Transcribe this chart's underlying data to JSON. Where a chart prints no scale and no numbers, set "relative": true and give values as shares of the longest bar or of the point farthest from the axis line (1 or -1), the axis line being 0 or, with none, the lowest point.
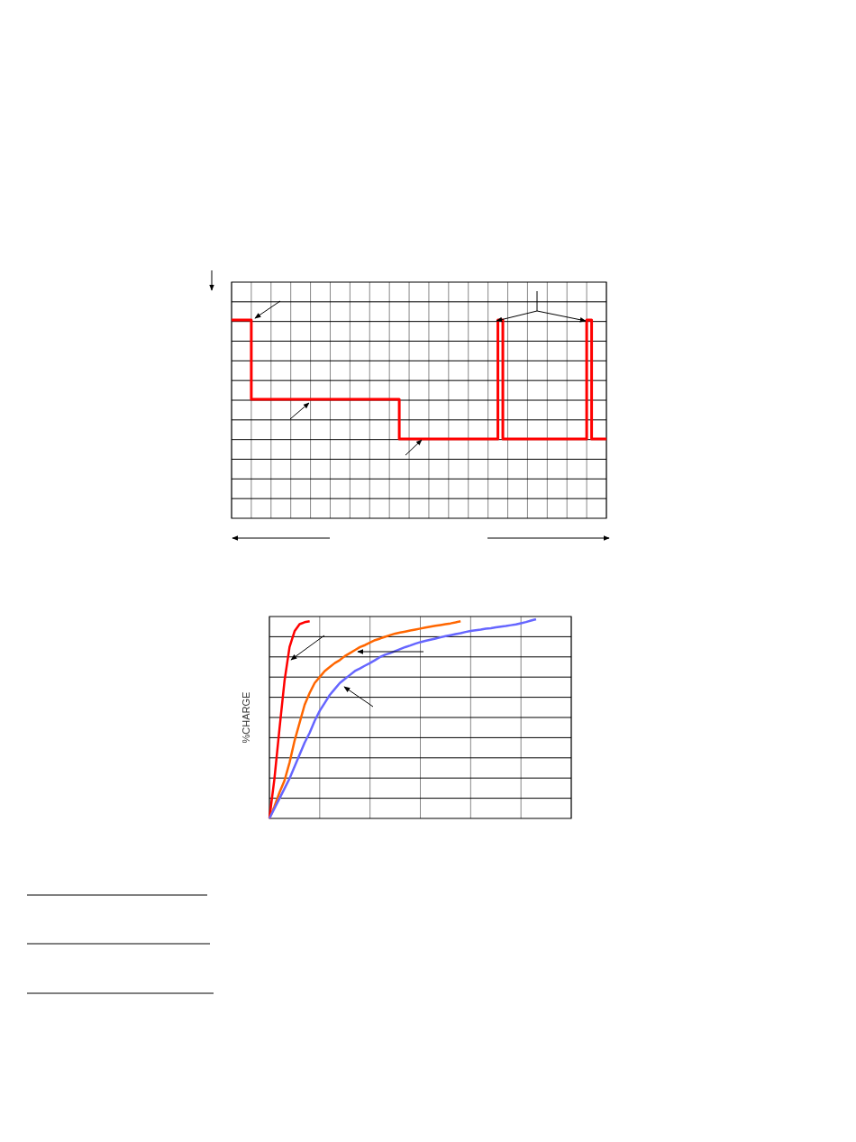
{
  "chart_data": [
    {
      "type": "step",
      "relative": true,
      "categories": [
        null,
        null,
        null,
        null,
        null,
        null,
        null,
        null,
        null,
        null,
        null,
        null,
        null,
        null,
        null,
        null,
        null,
        null,
        null,
        null,
        null,
        null,
        null,
        null,
        null,
        null,
        null,
        null,
        null,
        null,
        null,
        null,
        null,
        null,
        null,
        null,
        null,
        null,
        null,
        null,
        null,
        null,
        null,
        null,
        null,
        null,
        null,
        null,
        null,
        null,
        null,
        null,
        null,
        null,
        null,
        null,
        null,
        null,
        null,
        null,
        null,
        null,
        null,
        null,
        null,
        null,
        null,
        null,
        null,
        null,
        null,
        null,
        null,
        null,
        null,
        null,
        null
      ],
      "grid": true,
      "series": [
        {
          "color": "#ff0000",
          "values": [
            1,
            1,
            1,
            1,
            0.6,
            0.6,
            0.6,
            0.6,
            0.6,
            0.6,
            0.6,
            0.6,
            0.6,
            0.6,
            0.6,
            0.6,
            0.6,
            0.6,
            0.6,
            0.6,
            0.6,
            0.6,
            0.6,
            0.6,
            0.6,
            0.6,
            0.6,
            0.6,
            0.6,
            0.6,
            0.6,
            0.6,
            0.6,
            0.6,
            0.4,
            0.4,
            0.4,
            0.4,
            0.4,
            0.4,
            0.4,
            0.4,
            0.4,
            0.4,
            0.4,
            0.4,
            0.4,
            0.4,
            0.4,
            0.4,
            0.4,
            0.4,
            0.4,
            0.4,
            1,
            0.4,
            0.4,
            0.4,
            0.4,
            0.4,
            0.4,
            0.4,
            0.4,
            0.4,
            0.4,
            0.4,
            0.4,
            0.4,
            0.4,
            0.4,
            0.4,
            0.4,
            1,
            0.4,
            0.4,
            0.4,
            0.4
          ]
        }
      ]
    },
    {
      "type": "line",
      "relative": true,
      "ylabel": "%CHARGE",
      "categories": [
        null,
        null,
        null,
        null,
        null,
        null,
        null,
        null,
        null,
        null,
        null,
        null,
        null,
        null,
        null,
        null,
        null,
        null,
        null,
        null,
        null,
        null,
        null,
        null,
        null,
        null,
        null,
        null,
        null,
        null,
        null,
        null,
        null,
        null,
        null,
        null,
        null,
        null,
        null,
        null,
        null,
        null,
        null,
        null,
        null,
        null,
        null,
        null,
        null,
        null,
        null,
        null,
        null,
        null,
        null,
        null,
        null,
        null,
        null,
        null,
        null
      ],
      "grid": true,
      "series": [
        {
          "color": "#ff0000",
          "values": [
            0,
            0.2,
            0.45,
            0.69,
            0.86,
            0.94,
            0.975,
            0.985,
            0.99,
            null,
            null,
            null,
            null,
            null,
            null,
            null,
            null,
            null,
            null,
            null,
            null,
            null,
            null,
            null,
            null,
            null,
            null,
            null,
            null,
            null,
            null,
            null,
            null,
            null,
            null,
            null,
            null,
            null,
            null,
            null,
            null,
            null,
            null,
            null,
            null,
            null,
            null,
            null,
            null,
            null,
            null,
            null,
            null,
            null,
            null,
            null,
            null,
            null,
            null,
            null,
            null
          ]
        },
        {
          "color": "#ff6600",
          "values": [
            0,
            0.06,
            0.13,
            0.19,
            0.28,
            0.39,
            0.48,
            0.57,
            0.63,
            0.68,
            0.71,
            0.74,
            0.76,
            0.78,
            0.795,
            0.815,
            0.83,
            0.845,
            0.86,
            0.87,
            0.883,
            0.895,
            0.903,
            0.912,
            0.92,
            0.928,
            0.933,
            0.938,
            0.943,
            0.948,
            0.953,
            0.958,
            0.963,
            0.967,
            0.971,
            0.975,
            0.979,
            0.984,
            0.99,
            null,
            null,
            null,
            null,
            null,
            null,
            null,
            null,
            null,
            null,
            null,
            null,
            null,
            null,
            null,
            null,
            null,
            null,
            null,
            null,
            null,
            null
          ]
        },
        {
          "color": "#6666ff",
          "values": [
            0,
            0.05,
            0.1,
            0.15,
            0.2,
            0.26,
            0.32,
            0.38,
            0.43,
            0.49,
            0.54,
            0.58,
            0.62,
            0.65,
            0.68,
            0.7,
            0.72,
            0.74,
            0.753,
            0.767,
            0.78,
            0.795,
            0.81,
            0.822,
            0.83,
            0.84,
            0.85,
            0.86,
            0.868,
            0.877,
            0.885,
            0.891,
            0.897,
            0.903,
            0.909,
            0.915,
            0.92,
            0.925,
            0.93,
            0.936,
            0.941,
            0.945,
            0.948,
            0.952,
            0.955,
            0.959,
            0.963,
            0.966,
            0.97,
            0.974,
            0.98,
            0.986,
            0.993,
            1,
            null,
            null,
            null,
            null,
            null,
            null,
            null
          ]
        }
      ]
    }
  ]
}
